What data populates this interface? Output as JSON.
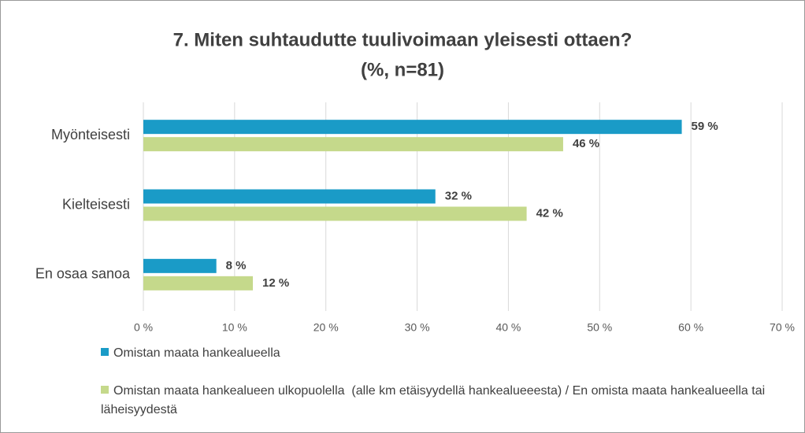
{
  "chart_data": {
    "type": "bar",
    "orientation": "horizontal",
    "title": [
      "7. Miten suhtaudutte tuulivoimaan yleisesti ottaen?",
      "(%, n=81)"
    ],
    "categories": [
      "Myönteisesti",
      "Kielteisesti",
      "En osaa sanoa"
    ],
    "series": [
      {
        "name": "Omistan maata hankealueella",
        "color": "#1a9bc7",
        "values": [
          59,
          32,
          8
        ],
        "value_labels": [
          "59 %",
          "32 %",
          "8 %"
        ]
      },
      {
        "name": "Omistan maata hankealueen ulkopuolella  (alle km etäisyydellä hankealueeesta) / En omista maata hankealueella tai läheisyydestä",
        "color": "#c5d98b",
        "values": [
          46,
          42,
          12
        ],
        "value_labels": [
          "46 %",
          "42 %",
          "12 %"
        ]
      }
    ],
    "xlim": [
      0,
      70
    ],
    "xticks": [
      {
        "value": 0,
        "label": "0 %"
      },
      {
        "value": 10,
        "label": "10 %"
      },
      {
        "value": 20,
        "label": "20 %"
      },
      {
        "value": 30,
        "label": "30 %"
      },
      {
        "value": 40,
        "label": "40 %"
      },
      {
        "value": 50,
        "label": "50 %"
      },
      {
        "value": 60,
        "label": "60 %"
      },
      {
        "value": 70,
        "label": "70 %"
      }
    ],
    "grid": true,
    "legend": "bottom"
  }
}
